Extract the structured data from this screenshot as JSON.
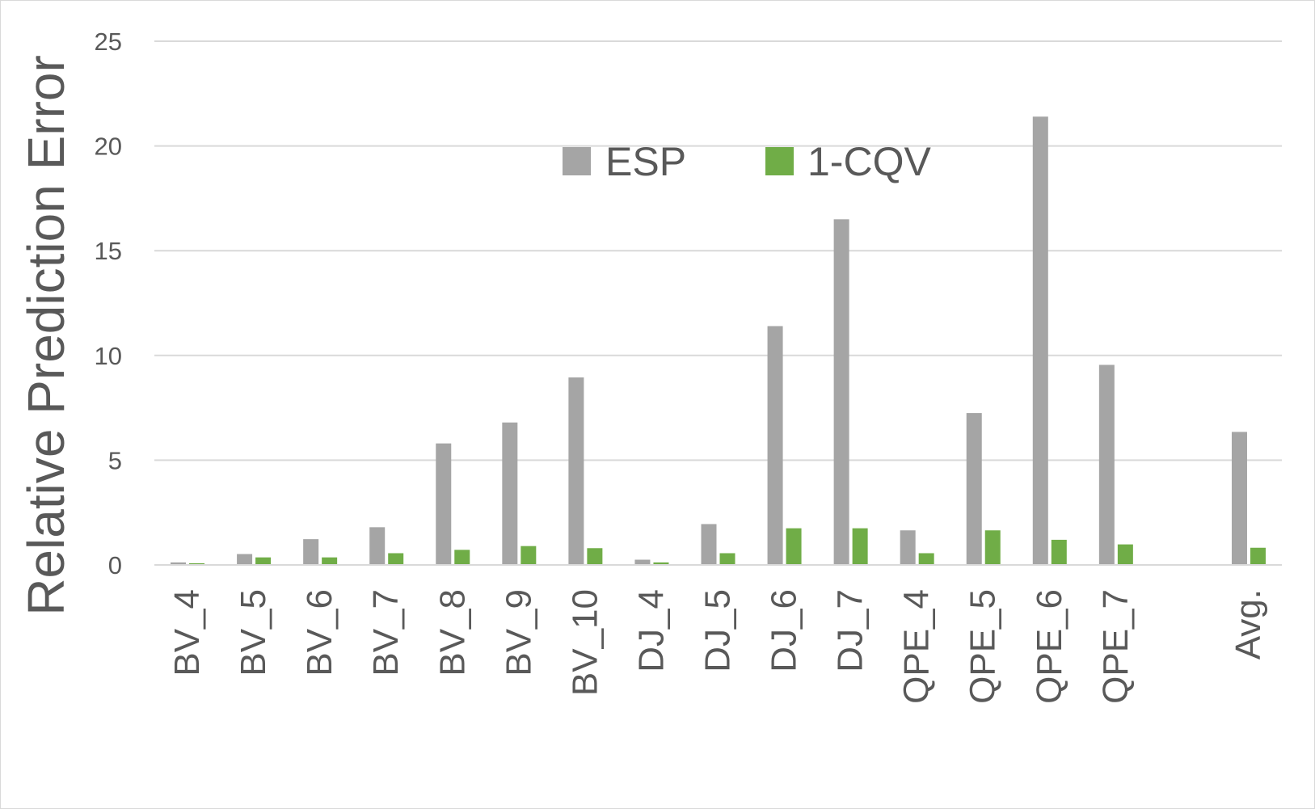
{
  "chart_data": {
    "type": "bar",
    "title": "",
    "xlabel": "",
    "ylabel": "Relative Prediction Error",
    "ylim": [
      0,
      25
    ],
    "yticks": [
      0,
      5,
      10,
      15,
      20,
      25
    ],
    "grid": true,
    "legend_position": "top-center",
    "categories": [
      "BV_4",
      "BV_5",
      "BV_6",
      "BV_7",
      "BV_8",
      "BV_9",
      "BV_10",
      "DJ_4",
      "DJ_5",
      "DJ_6",
      "DJ_7",
      "QPE_4",
      "QPE_5",
      "QPE_6",
      "QPE_7",
      "",
      "Avg."
    ],
    "series": [
      {
        "name": "ESP",
        "color": "#a5a5a5",
        "values": [
          0.12,
          0.52,
          1.23,
          1.8,
          5.8,
          6.8,
          8.95,
          0.25,
          1.95,
          11.4,
          16.5,
          1.65,
          7.25,
          21.4,
          9.55,
          null,
          6.35
        ]
      },
      {
        "name": "1-CQV",
        "color": "#70ad47",
        "values": [
          0.08,
          0.36,
          0.36,
          0.56,
          0.72,
          0.9,
          0.8,
          0.12,
          0.56,
          1.75,
          1.75,
          0.56,
          1.65,
          1.2,
          0.98,
          null,
          0.82
        ]
      }
    ]
  }
}
